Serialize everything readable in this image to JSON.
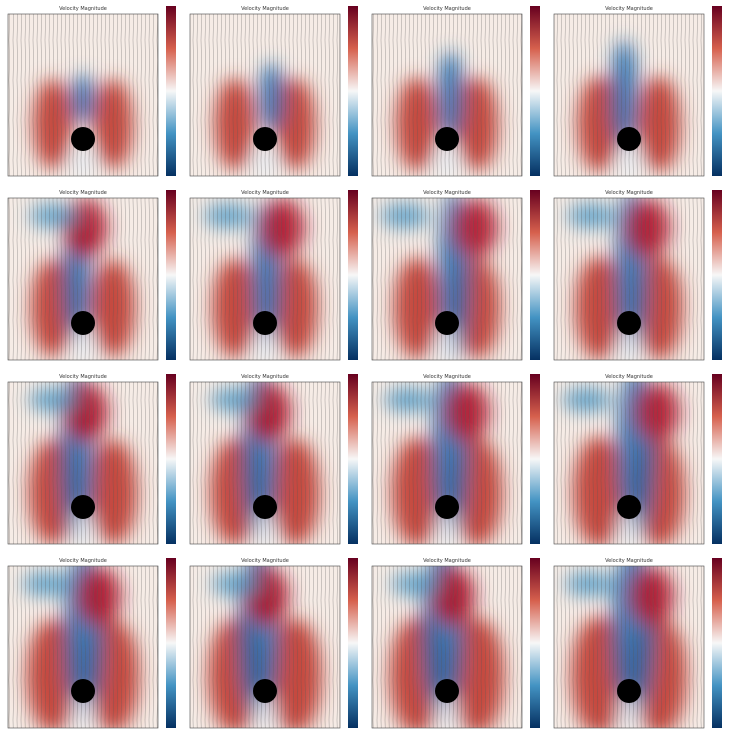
{
  "panels": [
    {
      "title": "Velocity Magnitude"
    },
    {
      "title": "Velocity Magnitude"
    },
    {
      "title": "Velocity Magnitude"
    },
    {
      "title": "Velocity Magnitude"
    },
    {
      "title": "Velocity Magnitude"
    },
    {
      "title": "Velocity Magnitude"
    },
    {
      "title": "Velocity Magnitude"
    },
    {
      "title": "Velocity Magnitude"
    },
    {
      "title": "Velocity Magnitude"
    },
    {
      "title": "Velocity Magnitude"
    },
    {
      "title": "Velocity Magnitude"
    },
    {
      "title": "Velocity Magnitude"
    },
    {
      "title": "Velocity Magnitude"
    },
    {
      "title": "Velocity Magnitude"
    },
    {
      "title": "Velocity Magnitude"
    },
    {
      "title": "Velocity Magnitude"
    }
  ]
}
